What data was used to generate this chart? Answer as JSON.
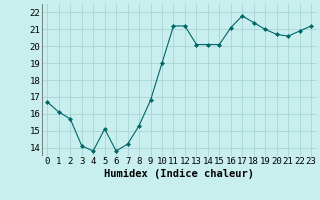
{
  "x": [
    0,
    1,
    2,
    3,
    4,
    5,
    6,
    7,
    8,
    9,
    10,
    11,
    12,
    13,
    14,
    15,
    16,
    17,
    18,
    19,
    20,
    21,
    22,
    23
  ],
  "y": [
    16.7,
    16.1,
    15.7,
    14.1,
    13.8,
    15.1,
    13.8,
    14.2,
    15.3,
    16.8,
    19.0,
    21.2,
    21.2,
    20.1,
    20.1,
    20.1,
    21.1,
    21.8,
    21.4,
    21.0,
    20.7,
    20.6,
    20.9,
    21.2
  ],
  "bg_color": "#c8eeee",
  "grid_color": "#aad4d4",
  "line_color": "#006666",
  "marker_color": "#006666",
  "xlabel": "Humidex (Indice chaleur)",
  "xlabel_fontsize": 7.5,
  "tick_fontsize": 6.5,
  "ylim": [
    13.5,
    22.5
  ],
  "yticks": [
    14,
    15,
    16,
    17,
    18,
    19,
    20,
    21,
    22
  ],
  "xlim": [
    -0.5,
    23.5
  ],
  "xticks": [
    0,
    1,
    2,
    3,
    4,
    5,
    6,
    7,
    8,
    9,
    10,
    11,
    12,
    13,
    14,
    15,
    16,
    17,
    18,
    19,
    20,
    21,
    22,
    23
  ]
}
